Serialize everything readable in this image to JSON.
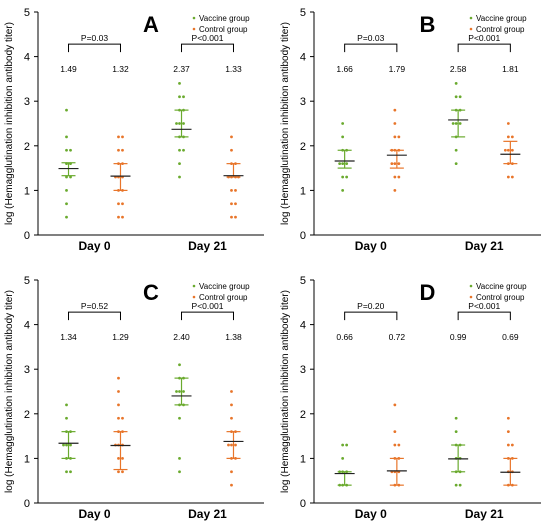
{
  "colors": {
    "vaccine": "#6aaa2e",
    "control": "#e8752a",
    "mean": "#222222",
    "axis": "#000000"
  },
  "chart_data": [
    {
      "type": "scatter",
      "panel_label": "A",
      "ylabel": "log (Hemagglutination inhibition antibody titer)",
      "ylim": [
        0,
        5
      ],
      "y_ticks": [
        "0",
        "1",
        "2",
        "3",
        "4",
        "5"
      ],
      "categories": [
        "Day 0",
        "Day 21"
      ],
      "legend": [
        "Vaccine group",
        "Control group"
      ],
      "legend_position": "top-right",
      "series": [
        {
          "name": "Vaccine group",
          "means": [
            1.49,
            2.37
          ],
          "ci": [
            [
              1.33,
              1.62
            ],
            [
              2.2,
              2.8
            ]
          ],
          "points": [
            [
              0.4,
              0.7,
              1.0,
              1.3,
              1.3,
              1.6,
              1.6,
              1.9,
              1.9,
              2.2,
              2.8
            ],
            [
              1.3,
              1.6,
              1.9,
              1.9,
              2.2,
              2.2,
              2.5,
              2.5,
              2.5,
              2.8,
              2.8,
              3.1,
              3.1,
              3.4
            ]
          ]
        },
        {
          "name": "Control group",
          "means": [
            1.32,
            1.33
          ],
          "ci": [
            [
              1.0,
              1.6
            ],
            [
              1.3,
              1.6
            ]
          ],
          "points": [
            [
              0.4,
              0.4,
              0.7,
              0.7,
              1.0,
              1.0,
              1.3,
              1.3,
              1.3,
              1.6,
              1.6,
              1.9,
              1.9,
              2.2,
              2.2
            ],
            [
              0.4,
              0.4,
              0.7,
              0.7,
              1.0,
              1.0,
              1.3,
              1.3,
              1.3,
              1.3,
              1.6,
              1.6,
              1.9,
              2.2
            ]
          ]
        }
      ],
      "comparisons": [
        {
          "category_index": 0,
          "p_label": "P=0.03",
          "value_labels": [
            "1.49",
            "1.32"
          ]
        },
        {
          "category_index": 1,
          "p_label": "P<0.001",
          "value_labels": [
            "2.37",
            "1.33"
          ]
        }
      ]
    },
    {
      "type": "scatter",
      "panel_label": "B",
      "ylabel": "log (Hemagglutination inhibition antibody titer)",
      "ylim": [
        0,
        5
      ],
      "y_ticks": [
        "0",
        "1",
        "2",
        "3",
        "4",
        "5"
      ],
      "categories": [
        "Day 0",
        "Day 21"
      ],
      "legend": [
        "Vaccine group",
        "Control group"
      ],
      "legend_position": "top-right",
      "series": [
        {
          "name": "Vaccine group",
          "means": [
            1.66,
            2.58
          ],
          "ci": [
            [
              1.5,
              1.9
            ],
            [
              2.2,
              2.8
            ]
          ],
          "points": [
            [
              1.0,
              1.3,
              1.3,
              1.6,
              1.6,
              1.6,
              1.9,
              1.9,
              2.2,
              2.5
            ],
            [
              1.6,
              1.9,
              2.2,
              2.5,
              2.5,
              2.5,
              2.8,
              2.8,
              3.1,
              3.1,
              3.4
            ]
          ]
        },
        {
          "name": "Control group",
          "means": [
            1.79,
            1.81
          ],
          "ci": [
            [
              1.5,
              1.9
            ],
            [
              1.6,
              2.1
            ]
          ],
          "points": [
            [
              1.0,
              1.3,
              1.3,
              1.6,
              1.6,
              1.6,
              1.9,
              1.9,
              1.9,
              2.2,
              2.2,
              2.5,
              2.8
            ],
            [
              1.3,
              1.3,
              1.6,
              1.6,
              1.9,
              1.9,
              1.9,
              2.2,
              2.2,
              2.5
            ]
          ]
        }
      ],
      "comparisons": [
        {
          "category_index": 0,
          "p_label": "P=0.03",
          "value_labels": [
            "1.66",
            "1.79"
          ]
        },
        {
          "category_index": 1,
          "p_label": "P<0.001",
          "value_labels": [
            "2.58",
            "1.81"
          ]
        }
      ]
    },
    {
      "type": "scatter",
      "panel_label": "C",
      "ylabel": "log (Hemagglutination inhibition antibody titer)",
      "ylim": [
        0,
        5
      ],
      "y_ticks": [
        "0",
        "1",
        "2",
        "3",
        "4",
        "5"
      ],
      "categories": [
        "Day 0",
        "Day 21"
      ],
      "legend": [
        "Vaccine group",
        "Control group"
      ],
      "legend_position": "top-right",
      "series": [
        {
          "name": "Vaccine group",
          "means": [
            1.34,
            2.4
          ],
          "ci": [
            [
              1.0,
              1.6
            ],
            [
              2.2,
              2.8
            ]
          ],
          "points": [
            [
              0.7,
              0.7,
              1.0,
              1.0,
              1.3,
              1.3,
              1.3,
              1.6,
              1.6,
              1.9,
              2.2
            ],
            [
              0.7,
              1.0,
              1.9,
              2.2,
              2.2,
              2.5,
              2.5,
              2.5,
              2.8,
              2.8,
              3.1
            ]
          ]
        },
        {
          "name": "Control group",
          "means": [
            1.29,
            1.38
          ],
          "ci": [
            [
              0.75,
              1.6
            ],
            [
              1.0,
              1.6
            ]
          ],
          "points": [
            [
              0.7,
              0.7,
              1.0,
              1.0,
              1.3,
              1.3,
              1.3,
              1.6,
              1.6,
              1.9,
              1.9,
              2.2,
              2.5,
              2.8
            ],
            [
              0.4,
              0.7,
              1.0,
              1.0,
              1.3,
              1.3,
              1.3,
              1.6,
              1.6,
              1.9,
              2.2,
              2.5
            ]
          ]
        }
      ],
      "comparisons": [
        {
          "category_index": 0,
          "p_label": "P=0.52",
          "value_labels": [
            "1.34",
            "1.29"
          ]
        },
        {
          "category_index": 1,
          "p_label": "P<0.001",
          "value_labels": [
            "2.40",
            "1.38"
          ]
        }
      ]
    },
    {
      "type": "scatter",
      "panel_label": "D",
      "ylabel": "log (Hemagglutination inhibition antibody titer)",
      "ylim": [
        0,
        5
      ],
      "y_ticks": [
        "0",
        "1",
        "2",
        "3",
        "4",
        "5"
      ],
      "categories": [
        "Day 0",
        "Day 21"
      ],
      "legend": [
        "Vaccine group",
        "Control group"
      ],
      "legend_position": "top-right",
      "series": [
        {
          "name": "Vaccine group",
          "means": [
            0.66,
            0.99
          ],
          "ci": [
            [
              0.4,
              0.7
            ],
            [
              0.7,
              1.3
            ]
          ],
          "points": [
            [
              0.4,
              0.4,
              0.4,
              0.7,
              0.7,
              0.7,
              1.0,
              1.3,
              1.3
            ],
            [
              0.4,
              0.4,
              0.7,
              0.7,
              1.0,
              1.0,
              1.3,
              1.3,
              1.6,
              1.9
            ]
          ]
        },
        {
          "name": "Control group",
          "means": [
            0.72,
            0.69
          ],
          "ci": [
            [
              0.4,
              1.0
            ],
            [
              0.4,
              1.0
            ]
          ],
          "points": [
            [
              0.4,
              0.4,
              0.7,
              0.7,
              0.7,
              1.0,
              1.0,
              1.3,
              1.3,
              1.6,
              2.2
            ],
            [
              0.4,
              0.4,
              0.7,
              0.7,
              1.0,
              1.0,
              1.3,
              1.3,
              1.6,
              1.9
            ]
          ]
        }
      ],
      "comparisons": [
        {
          "category_index": 0,
          "p_label": "P=0.20",
          "value_labels": [
            "0.66",
            "0.72"
          ]
        },
        {
          "category_index": 1,
          "p_label": "P<0.001",
          "value_labels": [
            "0.99",
            "0.69"
          ]
        }
      ]
    }
  ]
}
